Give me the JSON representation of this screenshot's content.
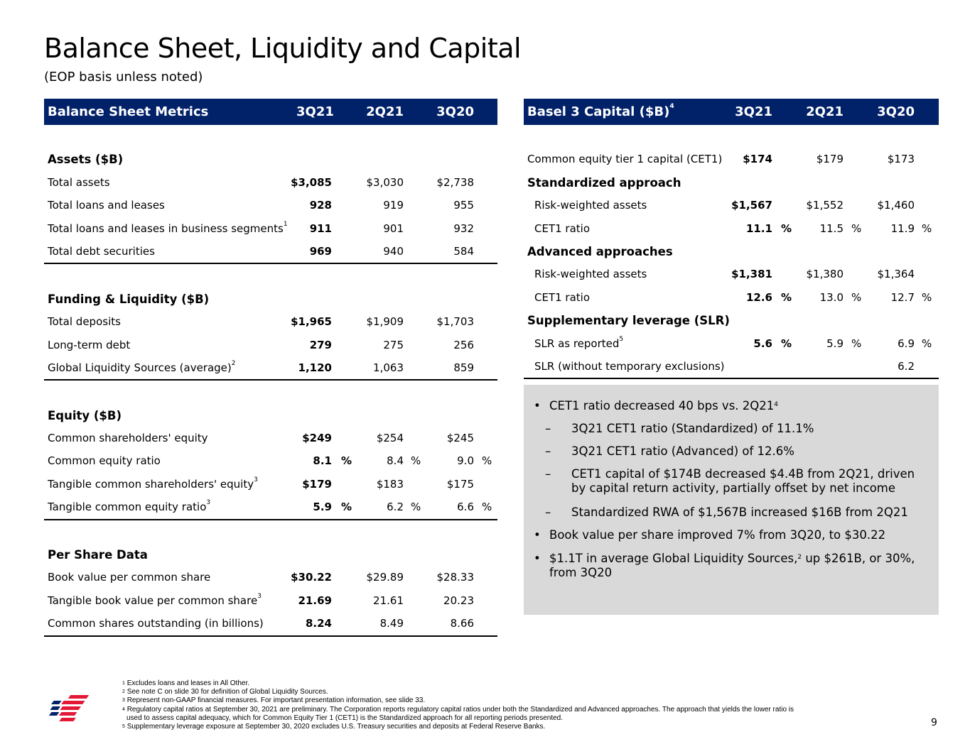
{
  "title": "Balance Sheet, Liquidity and Capital",
  "subtitle": "(EOP basis unless noted)",
  "left_table": {
    "header": [
      "Balance Sheet Metrics",
      "3Q21",
      "2Q21",
      "3Q20"
    ],
    "sections": [
      {
        "title": "Assets ($B)",
        "rows": [
          {
            "label": "Total assets",
            "sup": "",
            "values": [
              "$3,085",
              "$3,030",
              "$2,738"
            ],
            "pct": false
          },
          {
            "label": "Total loans and leases",
            "sup": "",
            "values": [
              "928",
              "919",
              "955"
            ],
            "pct": false
          },
          {
            "label": "Total loans and leases in business segments",
            "sup": "1",
            "values": [
              "911",
              "901",
              "932"
            ],
            "pct": false
          },
          {
            "label": "Total debt securities",
            "sup": "",
            "values": [
              "969",
              "940",
              "584"
            ],
            "pct": false
          }
        ]
      },
      {
        "title": "Funding & Liquidity ($B)",
        "rows": [
          {
            "label": "Total deposits",
            "sup": "",
            "values": [
              "$1,965",
              "$1,909",
              "$1,703"
            ],
            "pct": false
          },
          {
            "label": "Long-term debt",
            "sup": "",
            "values": [
              "279",
              "275",
              "256"
            ],
            "pct": false
          },
          {
            "label": "Global Liquidity Sources (average)",
            "sup": "2",
            "values": [
              "1,120",
              "1,063",
              "859"
            ],
            "pct": false
          }
        ]
      },
      {
        "title": "Equity ($B)",
        "rows": [
          {
            "label": "Common shareholders' equity",
            "sup": "",
            "values": [
              "$249",
              "$254",
              "$245"
            ],
            "pct": false
          },
          {
            "label": "Common equity ratio",
            "sup": "",
            "values": [
              "8.1",
              "8.4",
              "9.0"
            ],
            "pct": true
          },
          {
            "label": "Tangible common shareholders' equity",
            "sup": "3",
            "values": [
              "$179",
              "$183",
              "$175"
            ],
            "pct": false
          },
          {
            "label": "Tangible common equity ratio",
            "sup": "3",
            "values": [
              "5.9",
              "6.2",
              "6.6"
            ],
            "pct": true
          }
        ]
      },
      {
        "title": "Per Share Data",
        "rows": [
          {
            "label": "Book value per common share",
            "sup": "",
            "values": [
              "$30.22",
              "$29.89",
              "$28.33"
            ],
            "pct": false
          },
          {
            "label": "Tangible book value per common share",
            "sup": "3",
            "values": [
              "21.69",
              "21.61",
              "20.23"
            ],
            "pct": false
          },
          {
            "label": "Common shares outstanding (in billions)",
            "sup": "",
            "values": [
              "8.24",
              "8.49",
              "8.66"
            ],
            "pct": false
          }
        ]
      }
    ]
  },
  "right_table": {
    "header": [
      "Basel 3 Capital ($B)",
      "3Q21",
      "2Q21",
      "3Q20"
    ],
    "header_sup": "4",
    "rows": [
      {
        "type": "data",
        "label": "Common equity tier 1 capital (CET1)",
        "sup": "",
        "values": [
          "$174",
          "$179",
          "$173"
        ],
        "pct": false,
        "indent": false
      },
      {
        "type": "sec",
        "label": "Standardized approach"
      },
      {
        "type": "data",
        "label": "Risk-weighted assets",
        "sup": "",
        "values": [
          "$1,567",
          "$1,552",
          "$1,460"
        ],
        "pct": false,
        "indent": true
      },
      {
        "type": "data",
        "label": "CET1 ratio",
        "sup": "",
        "values": [
          "11.1",
          "11.5",
          "11.9"
        ],
        "pct": true,
        "indent": true
      },
      {
        "type": "sec",
        "label": "Advanced approaches"
      },
      {
        "type": "data",
        "label": "Risk-weighted assets",
        "sup": "",
        "values": [
          "$1,381",
          "$1,380",
          "$1,364"
        ],
        "pct": false,
        "indent": true
      },
      {
        "type": "data",
        "label": "CET1 ratio",
        "sup": "",
        "values": [
          "12.6",
          "13.0",
          "12.7"
        ],
        "pct": true,
        "indent": true
      },
      {
        "type": "sec",
        "label": "Supplementary leverage (SLR)"
      },
      {
        "type": "data",
        "label": "SLR as reported",
        "sup": "5",
        "values": [
          "5.6",
          "5.9",
          "6.9"
        ],
        "pct": true,
        "indent": true
      },
      {
        "type": "data",
        "label": "SLR (without temporary exclusions)",
        "sup": "",
        "values": [
          "",
          "",
          "6.2"
        ],
        "pct": false,
        "indent": true
      }
    ]
  },
  "pct_symbol": "%",
  "highlights": [
    {
      "level": 1,
      "marker": "•",
      "lines": [
        "CET1 ratio decreased 40 bps vs. 2Q21"
      ],
      "sup": "4"
    },
    {
      "level": 2,
      "marker": "–",
      "lines": [
        "3Q21 CET1 ratio (Standardized) of 11.1%"
      ]
    },
    {
      "level": 2,
      "marker": "–",
      "lines": [
        "3Q21 CET1 ratio (Advanced) of 12.6%"
      ]
    },
    {
      "level": 2,
      "marker": "–",
      "lines": [
        "CET1 capital of $174B decreased $4.4B from 2Q21, driven",
        "by capital return activity, partially offset by net income"
      ]
    },
    {
      "level": 2,
      "marker": "–",
      "lines": [
        "Standardized RWA of $1,567B increased $16B from 2Q21"
      ]
    },
    {
      "level": 1,
      "marker": "•",
      "lines": [
        "Book value per share improved 7% from 3Q20, to $30.22"
      ]
    },
    {
      "level": 1,
      "marker": "•",
      "lines": [
        "$1.1T in average Global Liquidity Sources,",
        "from 3Q20"
      ],
      "sup": "2",
      "after_sup": " up $261B, or 30%,"
    }
  ],
  "footnotes": [
    {
      "n": "1",
      "text": "Excludes loans and leases in All Other."
    },
    {
      "n": "2",
      "text": "See note C on slide 30 for definition of Global Liquidity Sources."
    },
    {
      "n": "3",
      "text": "Represent non-GAAP financial measures. For important presentation information, see slide 33."
    },
    {
      "n": "4",
      "text": "Regulatory capital ratios at September 30, 2021 are preliminary. The Corporation reports regulatory capital ratios under both the Standardized and Advanced approaches. The approach that yields the lower ratio is"
    },
    {
      "n": "",
      "text": "used to assess capital adequacy, which for Common Equity Tier 1 (CET1) is the Standardized approach for all reporting periods presented."
    },
    {
      "n": "5",
      "text": "Supplementary leverage exposure at September 30, 2020 excludes U.S. Treasury securities and deposits at Federal Reserve Banks."
    }
  ],
  "page_number": "9",
  "colors": {
    "header_bg": "#012169",
    "box_bg": "#d9d9d9",
    "logo_red": "#e31837",
    "logo_blue": "#012169"
  }
}
